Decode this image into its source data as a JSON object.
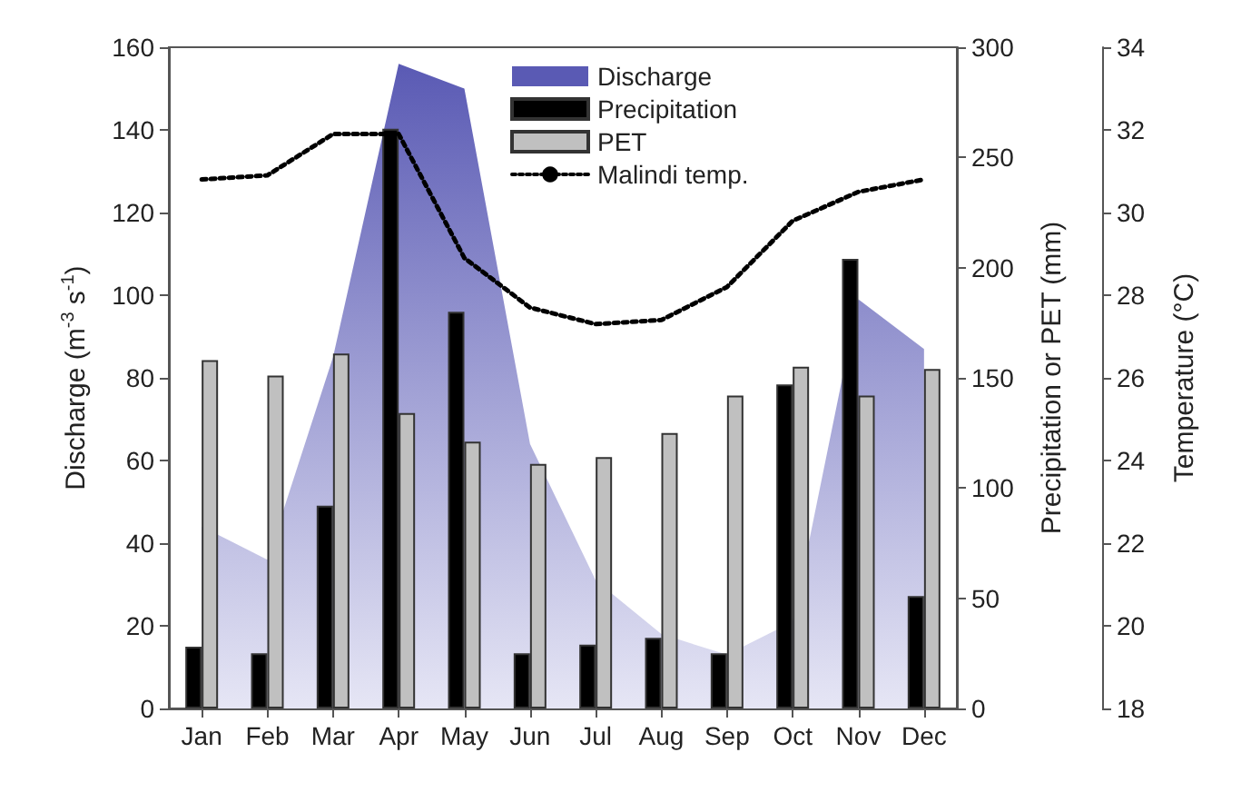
{
  "chart_data": {
    "type": "bar",
    "categories": [
      "Jan",
      "Feb",
      "Mar",
      "Apr",
      "May",
      "Jun",
      "Jul",
      "Aug",
      "Sep",
      "Oct",
      "Nov",
      "Dec"
    ],
    "ylabel": "Discharge (m$^{-3}$ s$^{-1}$)",
    "y2label": "Precipitation or PET (mm)",
    "y3label": "Temperature (°C)",
    "series": [
      {
        "name": "Discharge",
        "type": "area",
        "color": "#5a5ab4",
        "values": [
          44,
          36,
          85,
          156,
          150,
          64,
          31,
          18,
          13,
          21,
          99,
          87
        ]
      },
      {
        "name": "Precipitation",
        "axis": "y2",
        "color": "#000000",
        "values": [
          28,
          25,
          92,
          263,
          180,
          25,
          29,
          32,
          25,
          147,
          204,
          51
        ]
      },
      {
        "name": "PET",
        "axis": "y2",
        "color": "#c0c0c0",
        "values": [
          158,
          151,
          161,
          134,
          121,
          111,
          114,
          125,
          142,
          155,
          142,
          154
        ]
      },
      {
        "name": "Malindi temp.",
        "type": "line",
        "axis": "y3",
        "color": "#000000",
        "line_style": "dotted",
        "values": [
          30.8,
          30.9,
          31.9,
          31.9,
          28.9,
          27.7,
          27.3,
          27.4,
          28.2,
          29.8,
          30.5,
          30.8
        ]
      }
    ],
    "ylim": [
      0,
      160
    ],
    "yticks": [
      0,
      20,
      40,
      60,
      80,
      100,
      120,
      140,
      160
    ],
    "y2lim": [
      0,
      300
    ],
    "y2ticks": [
      0,
      50,
      100,
      150,
      200,
      250,
      300
    ],
    "y3lim": [
      18,
      34
    ],
    "y3ticks": [
      18,
      20,
      22,
      24,
      26,
      28,
      30,
      32,
      34
    ],
    "grid": false,
    "legend": "top",
    "marker": "none"
  }
}
